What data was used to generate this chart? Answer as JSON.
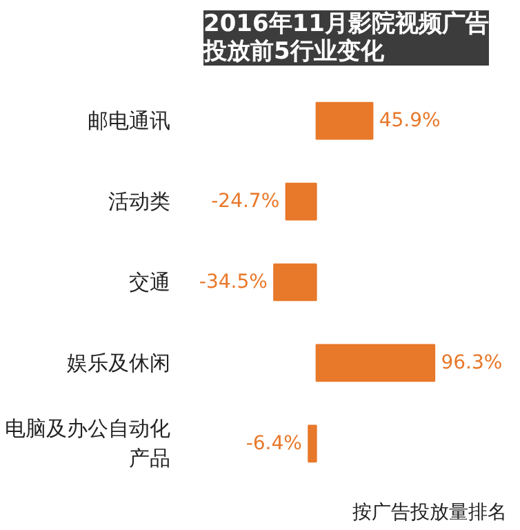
{
  "chart_data": {
    "type": "bar",
    "orientation": "horizontal",
    "title": "2016年11月影院视频广告投放前5行业变化",
    "categories": [
      "邮电通讯",
      "活动类",
      "交通",
      "娱乐及休闲",
      "电脑及办公自动化产品"
    ],
    "values": [
      45.9,
      -24.7,
      -34.5,
      96.3,
      -6.4
    ],
    "value_labels": [
      "45.9%",
      "-24.7%",
      "-34.5%",
      "96.3%",
      "-6.4%"
    ],
    "color": "#e8782a",
    "grid": false,
    "annotations": [
      "按广告投放量排名"
    ]
  }
}
